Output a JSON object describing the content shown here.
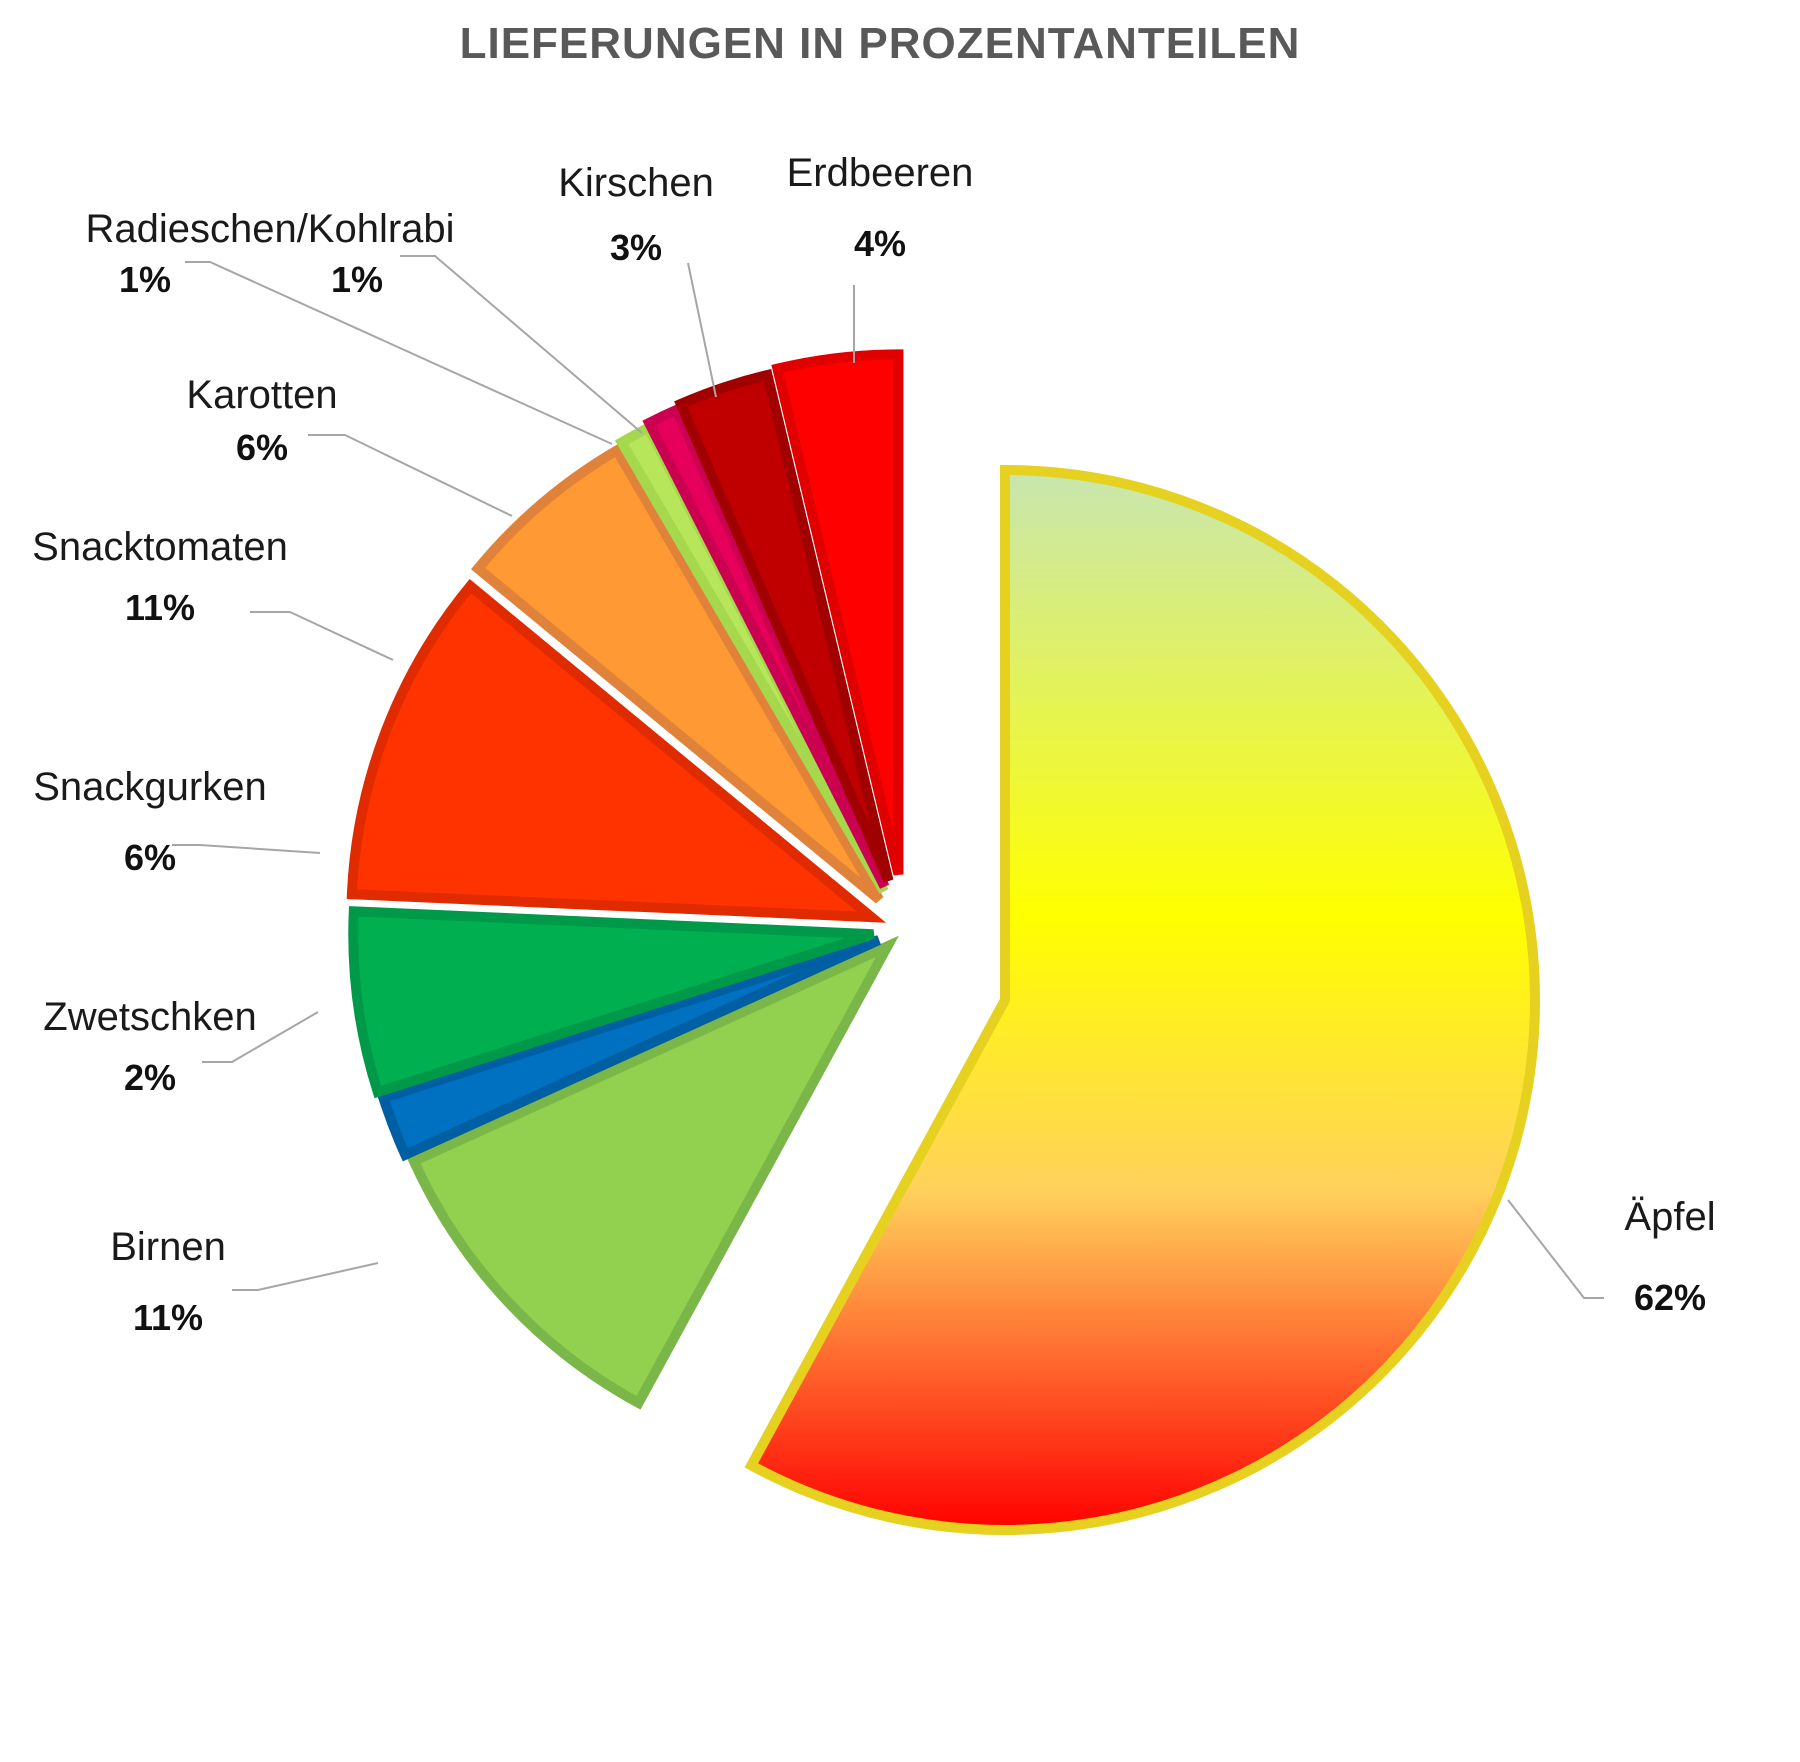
{
  "chart_data": {
    "type": "pie",
    "title": "LIEFERUNGEN IN PROZENTANTEILEN",
    "slices": [
      {
        "label": "Äpfel",
        "value": 62,
        "value_label": "62%",
        "fill": "gradient",
        "gradient": [
          "#c8e6b0",
          "#ffff00",
          "#ff0000"
        ],
        "stroke": "#e6d020"
      },
      {
        "label": "Birnen",
        "value": 11,
        "value_label": "11%",
        "fill": "#92d050",
        "stroke": "#7ab648"
      },
      {
        "label": "Zwetschken",
        "value": 2,
        "value_label": "2%",
        "fill": "#0070c0",
        "stroke": "#005fa3"
      },
      {
        "label": "Snackgurken",
        "value": 6,
        "value_label": "6%",
        "fill": "#00b050",
        "stroke": "#00994a"
      },
      {
        "label": "Snacktomaten",
        "value": 11,
        "value_label": "11%",
        "fill": "#ff3300",
        "stroke": "#e02a00"
      },
      {
        "label": "Karotten",
        "value": 6,
        "value_label": "6%",
        "fill": "#ff9933",
        "stroke": "#e0823a"
      },
      {
        "label": "Radieschen/Kohlrabi",
        "value": 1,
        "value_label": "1%",
        "fill": "#b8e65a",
        "stroke": "#a6d84e"
      },
      {
        "label": "",
        "value": 1,
        "value_label": "1%",
        "fill": "#e6005c",
        "stroke": "#cc0050"
      },
      {
        "label": "Kirschen",
        "value": 3,
        "value_label": "3%",
        "fill": "#c00000",
        "stroke": "#a00000"
      },
      {
        "label": "Erdbeeren",
        "value": 4,
        "value_label": "4%",
        "fill": "#ff0000",
        "stroke": "#e00000"
      }
    ],
    "legend": "none"
  }
}
